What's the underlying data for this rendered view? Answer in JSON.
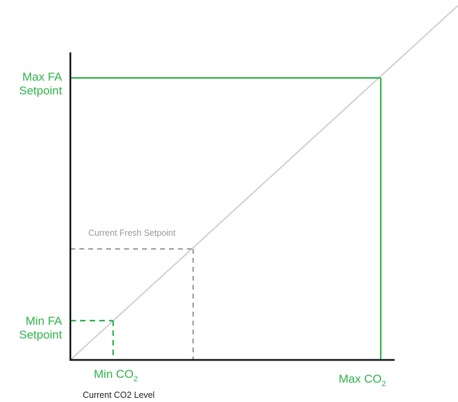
{
  "labels": {
    "max_fa_line1": "Max FA",
    "max_fa_line2": "Setpoint",
    "min_fa_line1": "Min FA",
    "min_fa_line2": "Setpoint",
    "min_co2_main": "Min CO",
    "min_co2_sub": "2",
    "max_co2_main": "Max CO",
    "max_co2_sub": "2",
    "current_fresh_setpoint": "Current Fresh Setpoint",
    "current_co2_level": "Current CO2 Level"
  },
  "colors": {
    "green": "#2db34a",
    "grey_dash": "#9a9a9a",
    "diagonal": "#d0d0d0",
    "axis": "#111111"
  }
}
